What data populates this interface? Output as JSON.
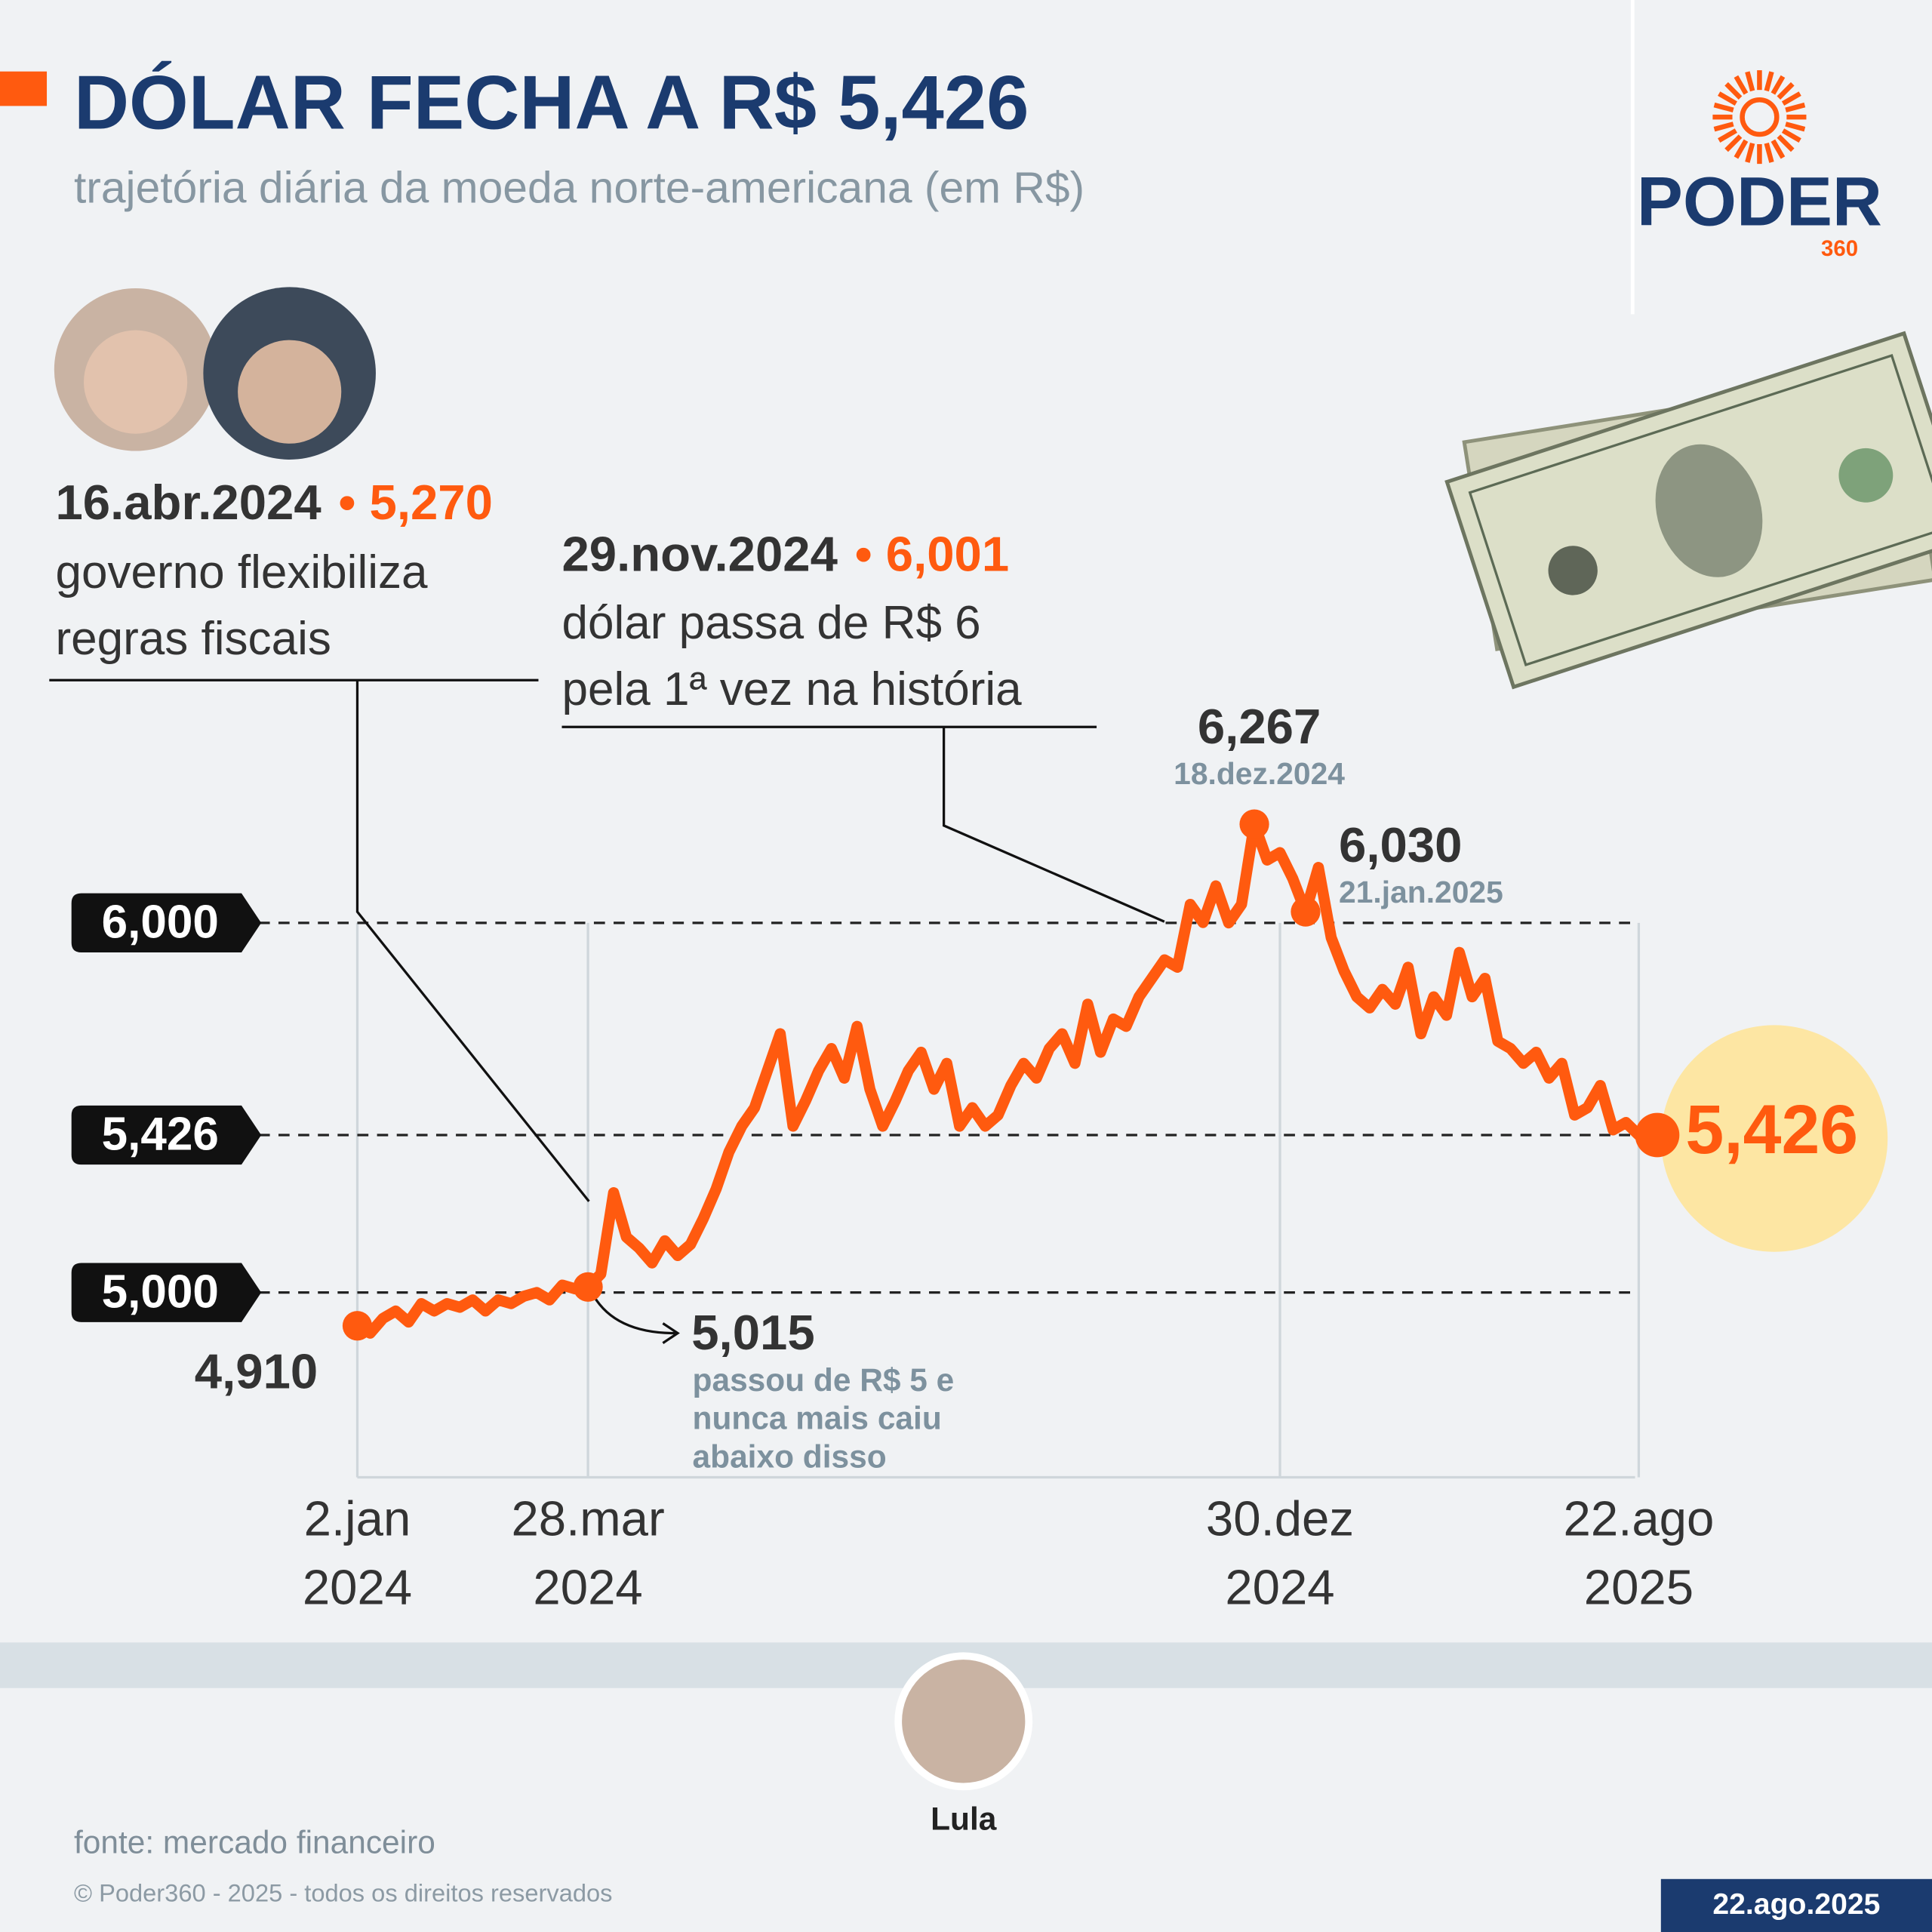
{
  "chart_data": {
    "type": "line",
    "title": "DÓLAR FECHA A R$ 5,426",
    "subtitle": "trajetória diária da moeda norte-americana (em R$)",
    "brand": "PODER",
    "brand_sub": "360",
    "source": "fonte: mercado financeiro",
    "copyright": "© Poder360 - 2025 - todos os direitos reservados",
    "date": "22.ago.2025",
    "person": "Lula",
    "ylim": [
      4.5,
      6.4
    ],
    "yticks": [
      {
        "value": 5,
        "label": "5,000"
      },
      {
        "value": 5.426,
        "label": "5,426"
      },
      {
        "value": 6,
        "label": "6,000"
      }
    ],
    "categories": [
      "2.jan\n2024",
      null,
      null,
      null,
      null,
      null,
      null,
      null,
      null,
      null,
      null,
      null,
      null,
      null,
      null,
      null,
      null,
      null,
      "28.mar\n2024",
      null,
      null,
      null,
      null,
      null,
      null,
      null,
      null,
      null,
      null,
      null,
      null,
      null,
      null,
      null,
      null,
      null,
      null,
      null,
      null,
      null,
      null,
      null,
      null,
      null,
      null,
      null,
      null,
      null,
      null,
      null,
      null,
      null,
      null,
      null,
      null,
      null,
      null,
      null,
      null,
      null,
      null,
      null,
      null,
      null,
      null,
      null,
      null,
      null,
      null,
      null,
      null,
      null,
      "30.dez\n2024",
      null,
      null,
      null,
      null,
      null,
      null,
      null,
      null,
      null,
      null,
      null,
      null,
      null,
      null,
      null,
      null,
      null,
      null,
      null,
      null,
      null,
      null,
      null,
      null,
      null,
      null,
      null,
      "22.ago\n2025"
    ],
    "series": [
      {
        "name": "dólar",
        "color": "#ff5a0f",
        "values": [
          4.91,
          4.89,
          4.93,
          4.95,
          4.92,
          4.97,
          4.95,
          4.97,
          4.96,
          4.98,
          4.95,
          4.98,
          4.97,
          4.99,
          5.0,
          4.98,
          5.02,
          5.01,
          5.015,
          5.05,
          5.27,
          5.15,
          5.12,
          5.08,
          5.14,
          5.1,
          5.13,
          5.2,
          5.28,
          5.38,
          5.45,
          5.5,
          5.6,
          5.7,
          5.45,
          5.52,
          5.6,
          5.66,
          5.58,
          5.72,
          5.55,
          5.45,
          5.52,
          5.6,
          5.65,
          5.55,
          5.62,
          5.45,
          5.5,
          5.45,
          5.48,
          5.56,
          5.62,
          5.58,
          5.66,
          5.7,
          5.62,
          5.78,
          5.65,
          5.74,
          5.72,
          5.8,
          5.85,
          5.9,
          5.88,
          6.05,
          6.001,
          6.1,
          6.0,
          6.05,
          6.267,
          6.17,
          6.19,
          6.12,
          6.03,
          6.15,
          5.96,
          5.87,
          5.8,
          5.77,
          5.82,
          5.78,
          5.88,
          5.7,
          5.8,
          5.75,
          5.92,
          5.8,
          5.85,
          5.68,
          5.66,
          5.62,
          5.65,
          5.58,
          5.62,
          5.48,
          5.5,
          5.56,
          5.44,
          5.46,
          5.426
        ],
        "value_labels": [
          "4,910",
          null,
          null,
          null,
          null,
          null,
          null,
          null,
          null,
          null,
          null,
          null,
          null,
          null,
          null,
          null,
          null,
          null,
          "5,015",
          null,
          null,
          null,
          null,
          null,
          null,
          null,
          null,
          null,
          null,
          null,
          null,
          null,
          null,
          null,
          null,
          null,
          null,
          null,
          null,
          null,
          null,
          null,
          null,
          null,
          null,
          null,
          null,
          null,
          null,
          null,
          null,
          null,
          null,
          null,
          null,
          null,
          null,
          null,
          null,
          null,
          null,
          null,
          null,
          null,
          null,
          null,
          null,
          null,
          null,
          null,
          "6,267",
          null,
          null,
          null,
          "6,030",
          null,
          null,
          null,
          null,
          null,
          null,
          null,
          null,
          null,
          null,
          null,
          null,
          null,
          null,
          null,
          null,
          null,
          null,
          null,
          null,
          null,
          null,
          null,
          null,
          null,
          "5,426"
        ],
        "date_labels": [
          null,
          null,
          null,
          null,
          null,
          null,
          null,
          null,
          null,
          null,
          null,
          null,
          null,
          null,
          null,
          null,
          null,
          null,
          null,
          null,
          null,
          null,
          null,
          null,
          null,
          null,
          null,
          null,
          null,
          null,
          null,
          null,
          null,
          null,
          null,
          null,
          null,
          null,
          null,
          null,
          null,
          null,
          null,
          null,
          null,
          null,
          null,
          null,
          null,
          null,
          null,
          null,
          null,
          null,
          null,
          null,
          null,
          null,
          null,
          null,
          null,
          null,
          null,
          null,
          null,
          null,
          null,
          null,
          null,
          null,
          "18.dez.2024",
          null,
          null,
          null,
          "21.jan.2025",
          null,
          null,
          null,
          null,
          null,
          null,
          null,
          null,
          null,
          null,
          null,
          null,
          null,
          null,
          null,
          null,
          null,
          null,
          null,
          null,
          null,
          null,
          null,
          null,
          null,
          null
        ]
      }
    ],
    "note": [
      "passou de R$ 5 e",
      "nunca mais caiu",
      "abaixo disso"
    ],
    "annotations": [
      {
        "heading": [
          "16.abr.2024",
          "• 5,270"
        ],
        "text": [
          "governo flexibiliza",
          "regras fiscais"
        ]
      },
      {
        "heading": [
          "29.nov.2024",
          "• 6,001"
        ],
        "text": [
          "dólar passa de R$ 6",
          "pela 1ª vez na história"
        ]
      }
    ]
  }
}
